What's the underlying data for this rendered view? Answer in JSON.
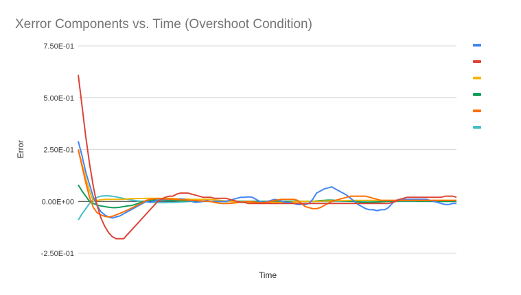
{
  "chart_data": {
    "type": "line",
    "title": "Xerror Components vs. Time (Overshoot Condition)",
    "xlabel": "Time",
    "ylabel": "Error",
    "ylim": [
      -0.25,
      0.75
    ],
    "y_ticks": [
      -0.25,
      0,
      0.25,
      0.5,
      0.75
    ],
    "y_tick_labels": [
      "-2.50E-01",
      "0.00E+00",
      "2.50E-01",
      "5.00E-01",
      "7.50E-01"
    ],
    "grid": true,
    "legend_position": "right",
    "x": [
      0,
      1,
      2,
      3,
      4,
      5,
      6,
      7,
      8,
      9,
      10,
      11,
      12,
      13,
      14,
      15,
      16,
      17,
      18,
      19,
      20,
      21,
      22,
      23,
      24,
      25,
      26,
      27,
      28,
      29,
      30,
      31,
      32,
      33,
      34,
      35,
      36,
      37,
      38,
      39,
      40,
      41,
      42,
      43,
      44,
      45,
      46,
      47,
      48,
      49,
      50,
      51,
      52,
      53,
      54,
      55,
      56,
      57,
      58,
      59,
      60,
      61,
      62,
      63,
      64,
      65,
      66,
      67,
      68,
      69,
      70,
      71,
      72,
      73,
      74,
      75,
      76,
      77,
      78,
      79,
      80,
      81,
      82,
      83,
      84,
      85,
      86,
      87,
      88,
      89,
      90,
      91,
      92,
      93,
      94,
      95,
      96,
      97,
      98,
      99,
      100
    ],
    "series": [
      {
        "name": "",
        "color": "#4285f4",
        "values": [
          0.29,
          0.22,
          0.14,
          0.08,
          0.02,
          -0.02,
          -0.05,
          -0.065,
          -0.075,
          -0.08,
          -0.075,
          -0.07,
          -0.06,
          -0.05,
          -0.04,
          -0.03,
          -0.02,
          -0.01,
          0.0,
          -0.005,
          0.0,
          0.005,
          0.01,
          0.008,
          0.012,
          0.01,
          0.008,
          0.012,
          0.01,
          0.005,
          0.0,
          -0.005,
          -0.003,
          0.0,
          0.005,
          0.0,
          0.0,
          0.0,
          0.0,
          0.0,
          0.005,
          0.01,
          0.015,
          0.02,
          0.02,
          0.022,
          0.02,
          0.01,
          0.0,
          -0.005,
          0.0,
          0.005,
          0.01,
          0.005,
          0.0,
          -0.005,
          -0.005,
          -0.01,
          -0.015,
          -0.015,
          -0.015,
          -0.01,
          0.01,
          0.04,
          0.05,
          0.06,
          0.065,
          0.07,
          0.06,
          0.05,
          0.04,
          0.03,
          0.015,
          0.0,
          -0.015,
          -0.025,
          -0.035,
          -0.04,
          -0.04,
          -0.045,
          -0.04,
          -0.04,
          -0.03,
          -0.01,
          0.005,
          0.01,
          0.01,
          0.01,
          0.01,
          0.01,
          0.01,
          0.01,
          0.01,
          0.005,
          0.0,
          -0.005,
          -0.01,
          -0.015,
          -0.015,
          -0.01,
          -0.01
        ]
      },
      {
        "name": "",
        "color": "#db4437",
        "values": [
          0.61,
          0.46,
          0.31,
          0.18,
          0.07,
          -0.02,
          -0.08,
          -0.12,
          -0.15,
          -0.17,
          -0.18,
          -0.18,
          -0.18,
          -0.16,
          -0.14,
          -0.12,
          -0.1,
          -0.08,
          -0.06,
          -0.04,
          -0.02,
          0.0,
          0.01,
          0.02,
          0.025,
          0.025,
          0.035,
          0.04,
          0.04,
          0.04,
          0.035,
          0.03,
          0.025,
          0.02,
          0.02,
          0.02,
          0.015,
          0.015,
          0.015,
          0.015,
          0.01,
          0.005,
          0.0,
          -0.005,
          -0.005,
          -0.01,
          -0.01,
          -0.01,
          -0.01,
          -0.01,
          -0.01,
          -0.01,
          -0.01,
          -0.01,
          -0.01,
          -0.01,
          -0.01,
          -0.01,
          -0.01,
          -0.01,
          -0.01,
          -0.01,
          -0.01,
          -0.01,
          -0.01,
          -0.01,
          -0.01,
          -0.01,
          -0.01,
          -0.01,
          -0.01,
          -0.01,
          -0.01,
          -0.01,
          -0.01,
          -0.01,
          -0.01,
          -0.01,
          -0.01,
          -0.01,
          -0.01,
          -0.01,
          -0.01,
          -0.005,
          0.0,
          0.01,
          0.015,
          0.02,
          0.02,
          0.02,
          0.02,
          0.02,
          0.02,
          0.02,
          0.02,
          0.02,
          0.02,
          0.025,
          0.025,
          0.025,
          0.02
        ]
      },
      {
        "name": "",
        "color": "#f4b400",
        "values": [
          0.25,
          0.18,
          0.11,
          0.05,
          0.0,
          0.005,
          0.008,
          0.01,
          0.01,
          0.01,
          0.01,
          0.01,
          0.01,
          0.012,
          0.013,
          0.013,
          0.014,
          0.014,
          0.015,
          0.015,
          0.015,
          0.015,
          0.015,
          0.015,
          0.015,
          0.014,
          0.013,
          0.012,
          0.012,
          0.011,
          0.01,
          0.01,
          0.01,
          0.01,
          0.01,
          0.01,
          0.008,
          0.006,
          0.004,
          0.002,
          0.0,
          0.0,
          -0.002,
          -0.003,
          -0.004,
          -0.005,
          -0.005,
          -0.005,
          -0.005,
          -0.005,
          -0.005,
          -0.005,
          -0.005,
          -0.005,
          -0.005,
          -0.005,
          -0.004,
          -0.003,
          -0.002,
          -0.001,
          0.0,
          0.0,
          0.0,
          0.0,
          0.001,
          0.002,
          0.002,
          0.003,
          0.003,
          0.004,
          0.004,
          0.004,
          0.005,
          0.005,
          0.005,
          0.005,
          0.005,
          0.005,
          0.005,
          0.005,
          0.005,
          0.005,
          0.005,
          0.005,
          0.005,
          0.005,
          0.005,
          0.005,
          0.005,
          0.005,
          0.005,
          0.005,
          0.005,
          0.005,
          0.005,
          0.005,
          0.005,
          0.005,
          0.005,
          0.005,
          0.005
        ]
      },
      {
        "name": "",
        "color": "#0f9d58",
        "values": [
          0.08,
          0.05,
          0.025,
          0.0,
          -0.01,
          -0.018,
          -0.022,
          -0.025,
          -0.028,
          -0.03,
          -0.03,
          -0.028,
          -0.025,
          -0.022,
          -0.02,
          -0.015,
          -0.008,
          0.0,
          0.003,
          0.005,
          0.006,
          0.006,
          0.006,
          0.005,
          0.005,
          0.004,
          0.004,
          0.003,
          0.003,
          0.002,
          0.002,
          0.001,
          0.001,
          0.001,
          0.001,
          0.0,
          0.0,
          0.0,
          0.0,
          0.0,
          0.0,
          0.0,
          0.0,
          0.0,
          0.0,
          0.0,
          0.0,
          0.0,
          0.0,
          0.0,
          0.0,
          0.0,
          0.0,
          0.0,
          0.0,
          0.0,
          0.0,
          0.0,
          0.0,
          0.0,
          0.0,
          0.0,
          0.0,
          0.002,
          0.004,
          0.005,
          0.006,
          0.006,
          0.005,
          0.004,
          0.003,
          0.002,
          0.001,
          0.0,
          -0.002,
          -0.004,
          -0.005,
          -0.005,
          -0.004,
          -0.003,
          -0.002,
          -0.001,
          0.0,
          0.001,
          0.002,
          0.002,
          0.002,
          0.002,
          0.002,
          0.002,
          0.001,
          0.001,
          0.001,
          0.001,
          0.0,
          0.0,
          0.0,
          0.0,
          0.0,
          0.0,
          0.0
        ]
      },
      {
        "name": "",
        "color": "#ff6d01",
        "values": [
          0.25,
          0.17,
          0.09,
          0.02,
          -0.03,
          -0.055,
          -0.065,
          -0.072,
          -0.075,
          -0.072,
          -0.065,
          -0.058,
          -0.05,
          -0.042,
          -0.033,
          -0.024,
          -0.015,
          -0.005,
          0.005,
          0.01,
          0.012,
          0.013,
          0.013,
          0.012,
          0.011,
          0.01,
          0.009,
          0.008,
          0.007,
          0.006,
          0.005,
          0.004,
          0.003,
          0.002,
          0.001,
          0.0,
          -0.005,
          -0.008,
          -0.01,
          -0.01,
          -0.01,
          -0.008,
          -0.006,
          -0.004,
          -0.002,
          0.0,
          -0.002,
          -0.004,
          -0.006,
          -0.005,
          -0.004,
          0.0,
          0.005,
          0.008,
          0.01,
          0.01,
          0.01,
          0.01,
          0.005,
          -0.01,
          -0.025,
          -0.03,
          -0.035,
          -0.035,
          -0.03,
          -0.02,
          -0.01,
          0.0,
          0.005,
          0.01,
          0.015,
          0.02,
          0.025,
          0.025,
          0.025,
          0.025,
          0.025,
          0.02,
          0.015,
          0.01,
          0.005,
          0.005,
          0.005,
          0.005,
          0.005,
          0.005,
          0.005,
          0.005,
          0.005,
          0.005,
          0.005,
          0.005,
          0.005,
          0.005,
          0.005,
          0.005,
          0.005,
          0.005,
          0.005,
          0.005,
          0.005
        ]
      },
      {
        "name": "",
        "color": "#46bdc6",
        "values": [
          -0.09,
          -0.06,
          -0.035,
          -0.01,
          0.01,
          0.02,
          0.025,
          0.027,
          0.027,
          0.025,
          0.022,
          0.018,
          0.014,
          0.01,
          0.007,
          0.004,
          0.002,
          0.0,
          -0.002,
          -0.004,
          -0.005,
          -0.006,
          -0.006,
          -0.006,
          -0.005,
          -0.005,
          -0.004,
          -0.003,
          -0.002,
          -0.001,
          0.0,
          0.0,
          0.0,
          0.0,
          0.0,
          0.0,
          0.0,
          0.0,
          0.0,
          0.0,
          0.0,
          0.0,
          0.0,
          0.0,
          0.0,
          0.0,
          0.0,
          0.0,
          0.0,
          0.0,
          0.0,
          0.0,
          0.0,
          0.0,
          0.0,
          0.0,
          0.0,
          0.0,
          0.0,
          0.0,
          0.0,
          0.0,
          0.0,
          0.0,
          0.0,
          0.0,
          0.0,
          0.0,
          0.0,
          0.0,
          0.0,
          0.0,
          0.0,
          0.0,
          0.0,
          0.0,
          0.0,
          0.0,
          0.0,
          0.0,
          0.0,
          0.0,
          0.0,
          0.0,
          0.0,
          0.0,
          0.0,
          0.0,
          0.0,
          0.0,
          0.0,
          0.0,
          0.0,
          0.0,
          0.0,
          0.0,
          0.0,
          0.0,
          0.0,
          0.0,
          0.0
        ]
      }
    ]
  }
}
